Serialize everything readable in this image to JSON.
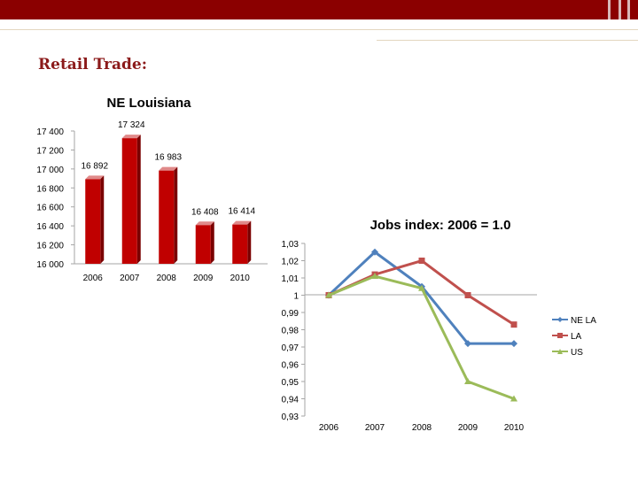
{
  "slide": {
    "title": "Retail Trade:",
    "colors": {
      "topbar": "#8b0000",
      "bar": "#c00000",
      "nela": "#4f81bd",
      "la": "#c0504d",
      "us": "#9bbb59"
    }
  },
  "chart_data": [
    {
      "type": "bar",
      "title": "NE Louisiana",
      "categories": [
        "2006",
        "2007",
        "2008",
        "2009",
        "2010"
      ],
      "values": [
        16892,
        17324,
        16983,
        16408,
        16414
      ],
      "value_labels": [
        "16 892",
        "17 324",
        "16 983",
        "16 408",
        "16 414"
      ],
      "ylim": [
        16000,
        17400
      ],
      "yticks": [
        16000,
        16200,
        16400,
        16600,
        16800,
        17000,
        17200,
        17400
      ],
      "ytick_labels": [
        "16 000",
        "16 200",
        "16 400",
        "16 600",
        "16 800",
        "17 000",
        "17 200",
        "17 400"
      ],
      "grid": false
    },
    {
      "type": "line",
      "title": "Jobs index: 2006 = 1.0",
      "categories": [
        "2006",
        "2007",
        "2008",
        "2009",
        "2010"
      ],
      "series": [
        {
          "name": "NE LA",
          "values": [
            1.0,
            1.025,
            1.005,
            0.972,
            0.972
          ]
        },
        {
          "name": "LA",
          "values": [
            1.0,
            1.012,
            1.02,
            1.0,
            0.983
          ]
        },
        {
          "name": "US",
          "values": [
            1.0,
            1.011,
            1.004,
            0.95,
            0.94
          ]
        }
      ],
      "ylim": [
        0.93,
        1.03
      ],
      "yticks": [
        0.93,
        0.94,
        0.95,
        0.96,
        0.97,
        0.98,
        0.99,
        1,
        1.01,
        1.02,
        1.03
      ],
      "ytick_labels": [
        "0,93",
        "0,94",
        "0,95",
        "0,96",
        "0,97",
        "0,98",
        "0,99",
        "1",
        "1,01",
        "1,02",
        "1,03"
      ],
      "legend": "right",
      "grid": false
    }
  ]
}
